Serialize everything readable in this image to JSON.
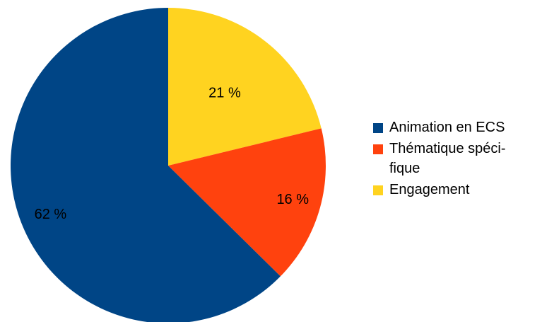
{
  "chart_data": {
    "type": "pie",
    "title": "",
    "slices": [
      {
        "name": "Animation en ECS",
        "value": 62,
        "label": "62 %",
        "color": "#004586"
      },
      {
        "name": "Thématique spécifique",
        "value": 16,
        "label": "16 %",
        "color": "#ff420e"
      },
      {
        "name": "Engagement",
        "value": 21,
        "label": "21 %",
        "color": "#ffd320"
      }
    ],
    "legend": {
      "placement": "right",
      "items": [
        {
          "label": "Animation en ECS",
          "color": "#004586"
        },
        {
          "label": "Thématique spéci-\nfique",
          "color": "#ff420e"
        },
        {
          "label": "Engagement",
          "color": "#ffd320"
        }
      ]
    }
  }
}
